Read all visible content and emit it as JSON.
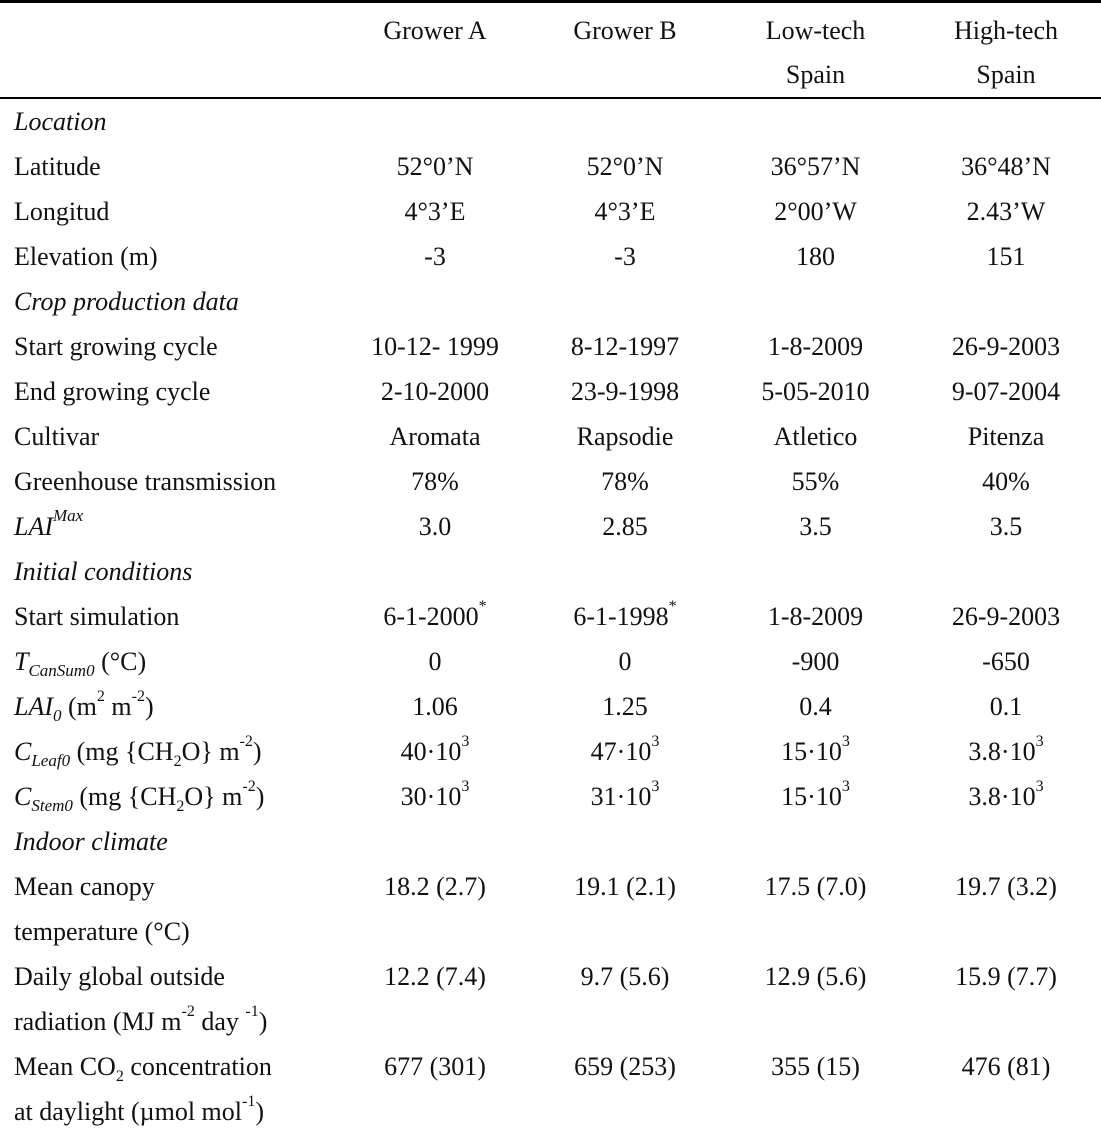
{
  "headers": [
    "Grower A",
    "Grower B",
    "Low-tech Spain",
    "High-tech Spain"
  ],
  "header_lines": [
    [
      "Grower A"
    ],
    [
      "Grower B"
    ],
    [
      "Low-tech",
      "Spain"
    ],
    [
      "High-tech",
      "Spain"
    ]
  ],
  "sections": {
    "location": "Location",
    "crop": "Crop production data",
    "initial": "Initial conditions",
    "climate": "Indoor climate"
  },
  "rows": {
    "latitude": {
      "label": "Latitude",
      "values": [
        "52°0’N",
        "52°0’N",
        "36°57’N",
        "36°48’N"
      ]
    },
    "longitude": {
      "label": "Longitud",
      "values": [
        "4°3’E",
        "4°3’E",
        "2°00’W",
        "2.43’W"
      ]
    },
    "elevation": {
      "label": "Elevation (m)",
      "values": [
        "-3",
        "-3",
        "180",
        "151"
      ]
    },
    "start_cycle": {
      "label": "Start growing cycle",
      "values": [
        "10-12- 1999",
        "8-12-1997",
        "1-8-2009",
        "26-9-2003"
      ]
    },
    "end_cycle": {
      "label": "End growing cycle",
      "values": [
        "2-10-2000",
        "23-9-1998",
        "5-05-2010",
        "9-07-2004"
      ]
    },
    "cultivar": {
      "label": "Cultivar",
      "values": [
        "Aromata",
        "Rapsodie",
        "Atletico",
        "Pitenza"
      ]
    },
    "transmission": {
      "label": "Greenhouse transmission",
      "values": [
        "78%",
        "78%",
        "55%",
        "40%"
      ]
    },
    "lai_max": {
      "label_main": "LAI",
      "label_sup": "Max",
      "values": [
        "3.0",
        "2.85",
        "3.5",
        "3.5"
      ]
    },
    "start_sim": {
      "label": "Start simulation",
      "values": [
        "6-1-2000",
        "6-1-1998",
        "1-8-2009",
        "26-9-2003"
      ],
      "marks": [
        "*",
        "*",
        "",
        ""
      ]
    },
    "tcansum": {
      "label_main": "T",
      "label_sub": "CanSum0",
      "label_rest": " (°C)",
      "values": [
        "0",
        "0",
        "-900",
        "-650"
      ]
    },
    "lai0": {
      "label_main": "LAI",
      "label_sub": "0",
      "label_rest": " (m",
      "sq": "2",
      "m_text": " m",
      "neg": "-2",
      "close": ")",
      "values": [
        "1.06",
        "1.25",
        "0.4",
        "0.1"
      ]
    },
    "cleaf0": {
      "label_main": "C",
      "label_sub": "Leaf0",
      "label_rest": " (mg {CH",
      "two": "2",
      "o_text": "O} m",
      "neg": "-2",
      "close": ")",
      "mantissa": [
        "40·10",
        "47·10",
        "15·10",
        "3.8·10"
      ],
      "exp": "3"
    },
    "cstem0": {
      "label_main": "C",
      "label_sub": "Stem0",
      "label_rest": " (mg {CH",
      "two": "2",
      "o_text": "O} m",
      "neg": "-2",
      "close": ")",
      "mantissa": [
        "30·10",
        "31·10",
        "15·10",
        "3.8·10"
      ],
      "exp": "3"
    },
    "canopy_temp": {
      "label_lines": [
        "Mean canopy",
        "temperature (°C)"
      ],
      "values": [
        "18.2 (2.7)",
        "19.1 (2.1)",
        "17.5 (7.0)",
        "19.7 (3.2)"
      ]
    },
    "radiation": {
      "label_line1": "Daily global outside",
      "rad_a": "radiation (MJ m",
      "rad_neg": "-2",
      "rad_b": " day ",
      "rad_neg1": "-1",
      "rad_c": ")",
      "values": [
        "12.2 (7.4)",
        "9.7 (5.6)",
        "12.9 (5.6)",
        "15.9 (7.7)"
      ]
    },
    "co2": {
      "co2_a": "Mean CO",
      "co2_sub": "2",
      "co2_b": " concentration",
      "co2_line2a": "at daylight (µmol mol",
      "co2_neg": "-1",
      "co2_line2b": ")",
      "values": [
        "677 (301)",
        "659 (253)",
        "355 (15)",
        "476 (81)"
      ]
    }
  }
}
